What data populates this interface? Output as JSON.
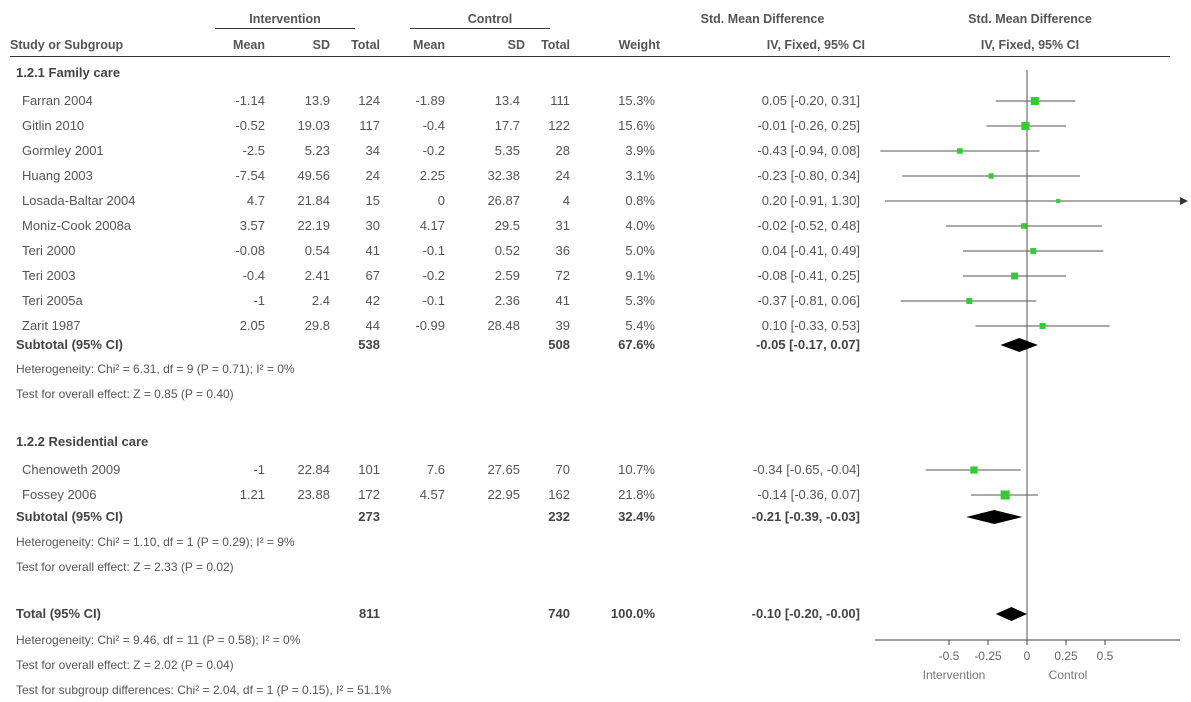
{
  "header": {
    "intervention": "Intervention",
    "control": "Control",
    "smd_col": "Std. Mean Difference",
    "smd_plot": "Std. Mean Difference",
    "study": "Study or Subgroup",
    "mean1": "Mean",
    "sd1": "SD",
    "total1": "Total",
    "mean2": "Mean",
    "sd2": "SD",
    "total2": "Total",
    "weight": "Weight",
    "method_col": "IV, Fixed, 95% CI",
    "method_plot": "IV, Fixed, 95% CI"
  },
  "groups": [
    {
      "title": "1.2.1 Family care",
      "studies": [
        {
          "name": "Farran 2004",
          "m1": "-1.14",
          "sd1": "13.9",
          "n1": "124",
          "m2": "-1.89",
          "sd2": "13.4",
          "n2": "111",
          "w": "15.3%",
          "ci": "0.05 [-0.20, 0.31]"
        },
        {
          "name": "Gitlin 2010",
          "m1": "-0.52",
          "sd1": "19.03",
          "n1": "117",
          "m2": "-0.4",
          "sd2": "17.7",
          "n2": "122",
          "w": "15.6%",
          "ci": "-0.01 [-0.26, 0.25]"
        },
        {
          "name": "Gormley 2001",
          "m1": "-2.5",
          "sd1": "5.23",
          "n1": "34",
          "m2": "-0.2",
          "sd2": "5.35",
          "n2": "28",
          "w": "3.9%",
          "ci": "-0.43 [-0.94, 0.08]"
        },
        {
          "name": "Huang 2003",
          "m1": "-7.54",
          "sd1": "49.56",
          "n1": "24",
          "m2": "2.25",
          "sd2": "32.38",
          "n2": "24",
          "w": "3.1%",
          "ci": "-0.23 [-0.80, 0.34]"
        },
        {
          "name": "Losada-Baltar 2004",
          "m1": "4.7",
          "sd1": "21.84",
          "n1": "15",
          "m2": "0",
          "sd2": "26.87",
          "n2": "4",
          "w": "0.8%",
          "ci": "0.20 [-0.91, 1.30]"
        },
        {
          "name": "Moniz-Cook 2008a",
          "m1": "3.57",
          "sd1": "22.19",
          "n1": "30",
          "m2": "4.17",
          "sd2": "29.5",
          "n2": "31",
          "w": "4.0%",
          "ci": "-0.02 [-0.52, 0.48]"
        },
        {
          "name": "Teri 2000",
          "m1": "-0.08",
          "sd1": "0.54",
          "n1": "41",
          "m2": "-0.1",
          "sd2": "0.52",
          "n2": "36",
          "w": "5.0%",
          "ci": "0.04 [-0.41, 0.49]"
        },
        {
          "name": "Teri 2003",
          "m1": "-0.4",
          "sd1": "2.41",
          "n1": "67",
          "m2": "-0.2",
          "sd2": "2.59",
          "n2": "72",
          "w": "9.1%",
          "ci": "-0.08 [-0.41, 0.25]"
        },
        {
          "name": "Teri 2005a",
          "m1": "-1",
          "sd1": "2.4",
          "n1": "42",
          "m2": "-0.1",
          "sd2": "2.36",
          "n2": "41",
          "w": "5.3%",
          "ci": "-0.37 [-0.81, 0.06]"
        },
        {
          "name": "Zarit 1987",
          "m1": "2.05",
          "sd1": "29.8",
          "n1": "44",
          "m2": "-0.99",
          "sd2": "28.48",
          "n2": "39",
          "w": "5.4%",
          "ci": "0.10 [-0.33, 0.53]"
        }
      ],
      "subtotal": {
        "label": "Subtotal (95% CI)",
        "n1": "538",
        "n2": "508",
        "w": "67.6%",
        "ci": "-0.05 [-0.17, 0.07]"
      },
      "heterogeneity": "Heterogeneity: Chi² = 6.31, df = 9 (P = 0.71); I² = 0%",
      "overall": "Test for overall effect: Z = 0.85 (P = 0.40)"
    },
    {
      "title": "1.2.2 Residential care",
      "studies": [
        {
          "name": "Chenoweth 2009",
          "m1": "-1",
          "sd1": "22.84",
          "n1": "101",
          "m2": "7.6",
          "sd2": "27.65",
          "n2": "70",
          "w": "10.7%",
          "ci": "-0.34 [-0.65, -0.04]"
        },
        {
          "name": "Fossey 2006",
          "m1": "1.21",
          "sd1": "23.88",
          "n1": "172",
          "m2": "4.57",
          "sd2": "22.95",
          "n2": "162",
          "w": "21.8%",
          "ci": "-0.14 [-0.36, 0.07]"
        }
      ],
      "subtotal": {
        "label": "Subtotal (95% CI)",
        "n1": "273",
        "n2": "232",
        "w": "32.4%",
        "ci": "-0.21 [-0.39, -0.03]"
      },
      "heterogeneity": "Heterogeneity: Chi² = 1.10, df = 1 (P = 0.29); I² = 9%",
      "overall": "Test for overall effect: Z = 2.33 (P = 0.02)"
    }
  ],
  "total": {
    "label": "Total (95% CI)",
    "n1": "811",
    "n2": "740",
    "w": "100.0%",
    "ci": "-0.10 [-0.20, -0.00]"
  },
  "footer": {
    "heterogeneity": "Heterogeneity: Chi² = 9.46, df = 11 (P = 0.58); I² = 0%",
    "overall": "Test for overall effect: Z = 2.02 (P = 0.04)",
    "subgroup": "Test for subgroup differences: Chi² = 2.04, df = 1 (P = 0.15), I² = 51.1%"
  },
  "chart_data": {
    "type": "forest",
    "xlim": [
      -0.5,
      0.5
    ],
    "ticks": [
      -0.5,
      -0.25,
      0,
      0.25,
      0.5
    ],
    "tick_labels": [
      "-0.5",
      "-0.25",
      "0",
      "0.25",
      "0.5"
    ],
    "left_label": "Intervention",
    "right_label": "Control",
    "studies": [
      {
        "name": "Farran 2004",
        "est": 0.05,
        "lo": -0.2,
        "hi": 0.31
      },
      {
        "name": "Gitlin 2010",
        "est": -0.01,
        "lo": -0.26,
        "hi": 0.25
      },
      {
        "name": "Gormley 2001",
        "est": -0.43,
        "lo": -0.94,
        "hi": 0.08
      },
      {
        "name": "Huang 2003",
        "est": -0.23,
        "lo": -0.8,
        "hi": 0.34
      },
      {
        "name": "Losada-Baltar 2004",
        "est": 0.2,
        "lo": -0.91,
        "hi": 1.3
      },
      {
        "name": "Moniz-Cook 2008a",
        "est": -0.02,
        "lo": -0.52,
        "hi": 0.48
      },
      {
        "name": "Teri 2000",
        "est": 0.04,
        "lo": -0.41,
        "hi": 0.49
      },
      {
        "name": "Teri 2003",
        "est": -0.08,
        "lo": -0.41,
        "hi": 0.25
      },
      {
        "name": "Teri 2005a",
        "est": -0.37,
        "lo": -0.81,
        "hi": 0.06
      },
      {
        "name": "Zarit 1987",
        "est": 0.1,
        "lo": -0.33,
        "hi": 0.53
      },
      {
        "name": "Chenoweth 2009",
        "est": -0.34,
        "lo": -0.65,
        "hi": -0.04
      },
      {
        "name": "Fossey 2006",
        "est": -0.14,
        "lo": -0.36,
        "hi": 0.07
      }
    ],
    "pooled": [
      {
        "name": "Subtotal 1.2.1",
        "est": -0.05,
        "lo": -0.17,
        "hi": 0.07
      },
      {
        "name": "Subtotal 1.2.2",
        "est": -0.21,
        "lo": -0.39,
        "hi": -0.03
      },
      {
        "name": "Total",
        "est": -0.1,
        "lo": -0.2,
        "hi": -0.0
      }
    ]
  }
}
